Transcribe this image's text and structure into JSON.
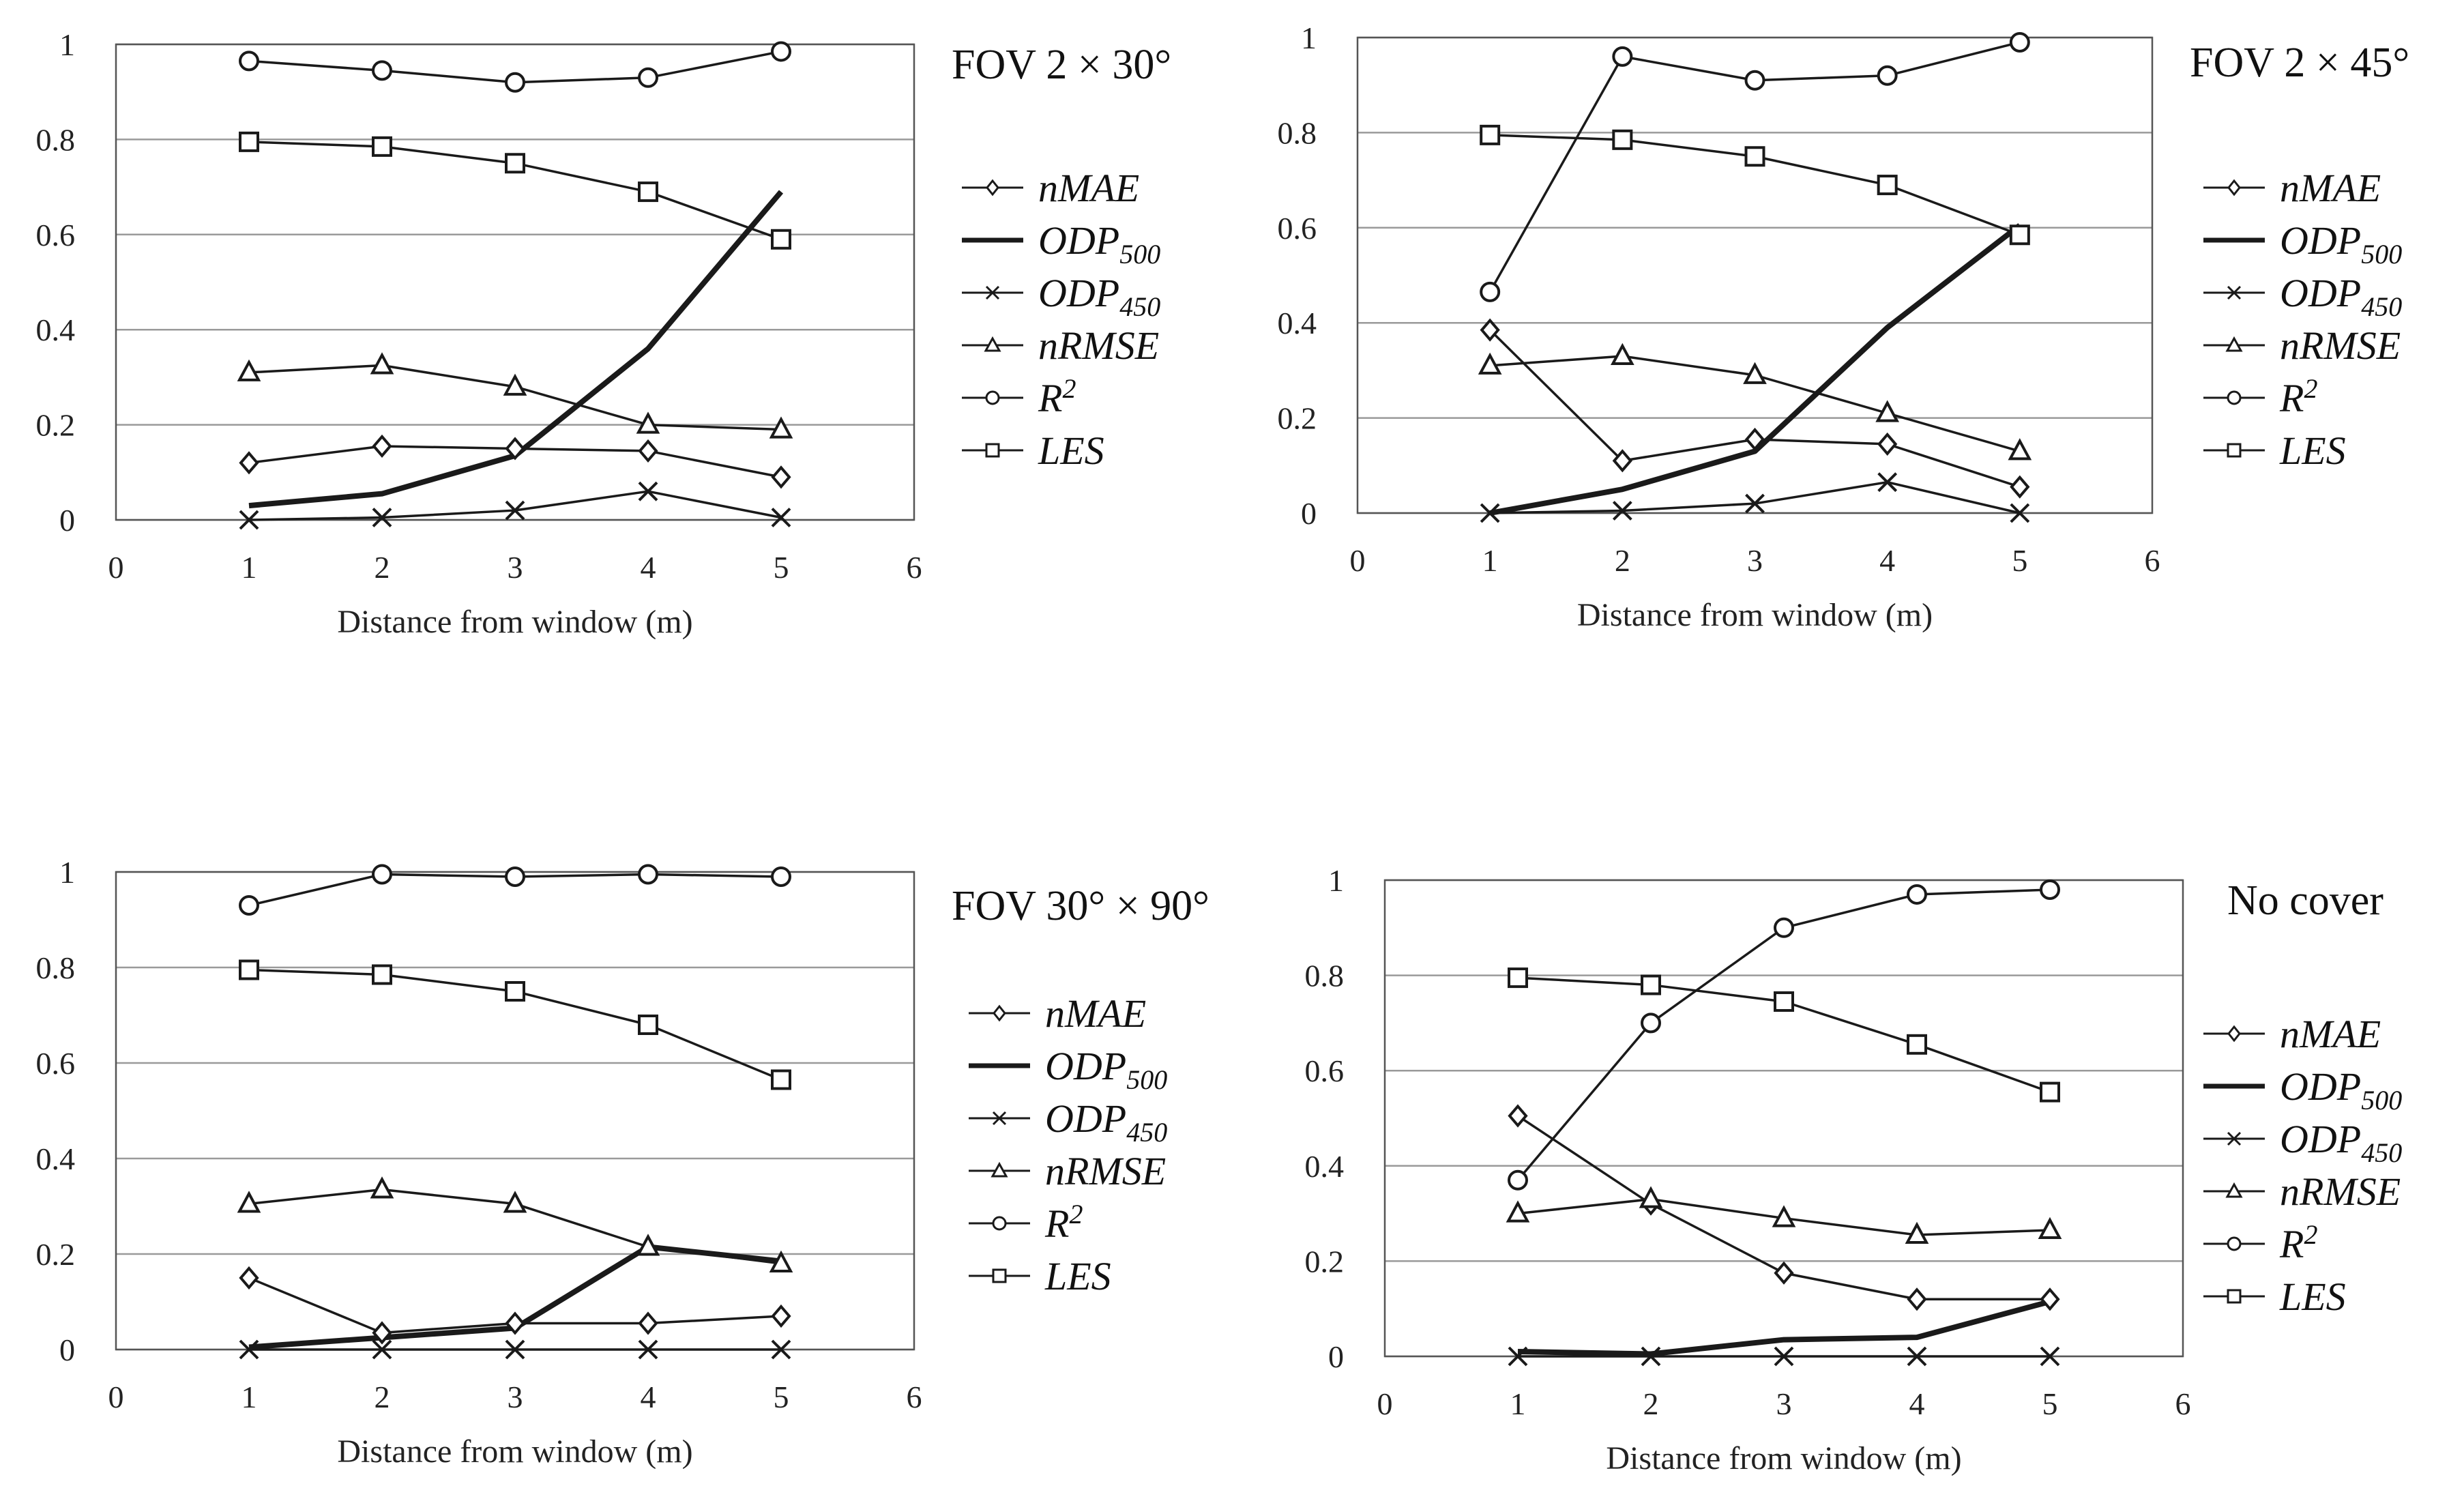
{
  "chart_data": [
    {
      "type": "line",
      "title": "FOV  2 × 30°",
      "xlabel": "Distance from window  (m)",
      "ylabel": "",
      "xlim": [
        0,
        6
      ],
      "ylim": [
        0,
        1
      ],
      "xticks": [
        "0",
        "1",
        "2",
        "3",
        "4",
        "5",
        "6"
      ],
      "yticks": [
        "0",
        "0.2",
        "0.4",
        "0.6",
        "0.8",
        "1"
      ],
      "grid": "horizontal",
      "legend_position": "right",
      "x": [
        1,
        2,
        3,
        4,
        5
      ],
      "series": [
        {
          "name": "nMAE",
          "marker": "diamond",
          "values": [
            0.12,
            0.155,
            0.15,
            0.145,
            0.09
          ]
        },
        {
          "name": "ODP500",
          "marker": "none",
          "values": [
            0.03,
            0.055,
            0.135,
            0.36,
            0.69
          ]
        },
        {
          "name": "ODP450",
          "marker": "x",
          "values": [
            0.0,
            0.005,
            0.02,
            0.06,
            0.005
          ]
        },
        {
          "name": "nRMSE",
          "marker": "triangle",
          "values": [
            0.31,
            0.325,
            0.28,
            0.2,
            0.19
          ]
        },
        {
          "name": "R2",
          "marker": "circle",
          "values": [
            0.965,
            0.945,
            0.92,
            0.93,
            0.985
          ]
        },
        {
          "name": "LES",
          "marker": "square",
          "values": [
            0.795,
            0.785,
            0.75,
            0.69,
            0.59
          ]
        }
      ]
    },
    {
      "type": "line",
      "title": "FOV  2 × 45°",
      "xlabel": "Distance from window  (m)",
      "ylabel": "",
      "xlim": [
        0,
        6
      ],
      "ylim": [
        0,
        1
      ],
      "xticks": [
        "0",
        "1",
        "2",
        "3",
        "4",
        "5",
        "6"
      ],
      "yticks": [
        "0",
        "0.2",
        "0.4",
        "0.6",
        "0.8",
        "1"
      ],
      "grid": "horizontal",
      "legend_position": "right",
      "x": [
        1,
        2,
        3,
        4,
        5
      ],
      "series": [
        {
          "name": "nMAE",
          "marker": "diamond",
          "values": [
            0.385,
            0.11,
            0.155,
            0.145,
            0.055
          ]
        },
        {
          "name": "ODP500",
          "marker": "none",
          "values": [
            0.0,
            0.05,
            0.13,
            0.39,
            0.605
          ]
        },
        {
          "name": "ODP450",
          "marker": "x",
          "values": [
            0.0,
            0.005,
            0.02,
            0.065,
            0.0
          ]
        },
        {
          "name": "nRMSE",
          "marker": "triangle",
          "values": [
            0.31,
            0.33,
            0.29,
            0.21,
            0.13
          ]
        },
        {
          "name": "R2",
          "marker": "circle",
          "values": [
            0.465,
            0.96,
            0.91,
            0.92,
            0.99
          ]
        },
        {
          "name": "LES",
          "marker": "square",
          "values": [
            0.795,
            0.785,
            0.75,
            0.69,
            0.585
          ]
        }
      ]
    },
    {
      "type": "line",
      "title": "FOV  30° × 90°",
      "xlabel": "Distance from window  (m)",
      "ylabel": "",
      "xlim": [
        0,
        6
      ],
      "ylim": [
        0,
        1
      ],
      "xticks": [
        "0",
        "1",
        "2",
        "3",
        "4",
        "5",
        "6"
      ],
      "yticks": [
        "0",
        "0.2",
        "0.4",
        "0.6",
        "0.8",
        "1"
      ],
      "grid": "horizontal",
      "legend_position": "right",
      "x": [
        1,
        2,
        3,
        4,
        5
      ],
      "series": [
        {
          "name": "nMAE",
          "marker": "diamond",
          "values": [
            0.15,
            0.035,
            0.055,
            0.055,
            0.07
          ]
        },
        {
          "name": "ODP500",
          "marker": "none",
          "values": [
            0.005,
            0.025,
            0.045,
            0.215,
            0.185
          ]
        },
        {
          "name": "ODP450",
          "marker": "x",
          "values": [
            0.0,
            0.0,
            0.0,
            0.0,
            0.0
          ]
        },
        {
          "name": "nRMSE",
          "marker": "triangle",
          "values": [
            0.305,
            0.335,
            0.305,
            0.215,
            0.18
          ]
        },
        {
          "name": "R2",
          "marker": "circle",
          "values": [
            0.93,
            0.995,
            0.99,
            0.995,
            0.99
          ]
        },
        {
          "name": "LES",
          "marker": "square",
          "values": [
            0.795,
            0.785,
            0.75,
            0.68,
            0.565
          ]
        }
      ]
    },
    {
      "type": "line",
      "title": "No cover",
      "xlabel": "Distance from window  (m)",
      "ylabel": "",
      "xlim": [
        0,
        6
      ],
      "ylim": [
        0,
        1
      ],
      "xticks": [
        "0",
        "1",
        "2",
        "3",
        "4",
        "5",
        "6"
      ],
      "yticks": [
        "0",
        "0.2",
        "0.4",
        "0.6",
        "0.8",
        "1"
      ],
      "grid": "horizontal",
      "legend_position": "right",
      "x": [
        1,
        2,
        3,
        4,
        5
      ],
      "series": [
        {
          "name": "nMAE",
          "marker": "diamond",
          "values": [
            0.505,
            0.32,
            0.175,
            0.12,
            0.12
          ]
        },
        {
          "name": "ODP500",
          "marker": "none",
          "values": [
            0.01,
            0.005,
            0.035,
            0.04,
            0.115
          ]
        },
        {
          "name": "ODP450",
          "marker": "x",
          "values": [
            0.0,
            0.0,
            0.0,
            0.0,
            0.0
          ]
        },
        {
          "name": "nRMSE",
          "marker": "triangle",
          "values": [
            0.3,
            0.33,
            0.29,
            0.255,
            0.265
          ]
        },
        {
          "name": "R2",
          "marker": "circle",
          "values": [
            0.37,
            0.7,
            0.9,
            0.97,
            0.98
          ]
        },
        {
          "name": "LES",
          "marker": "square",
          "values": [
            0.795,
            0.78,
            0.745,
            0.655,
            0.555
          ]
        }
      ]
    }
  ],
  "legend": {
    "items": [
      {
        "key": "nMAE",
        "base": "nMAE",
        "sub": "",
        "sup": ""
      },
      {
        "key": "ODP500",
        "base": "ODP",
        "sub": "500",
        "sup": ""
      },
      {
        "key": "ODP450",
        "base": "ODP",
        "sub": "450",
        "sup": ""
      },
      {
        "key": "nRMSE",
        "base": "nRMSE",
        "sub": "",
        "sup": ""
      },
      {
        "key": "R2",
        "base": "R",
        "sub": "",
        "sup": "2"
      },
      {
        "key": "LES",
        "base": "LES",
        "sub": "",
        "sup": ""
      }
    ]
  },
  "colors": {
    "line": "#1a1a1a",
    "grid": "#9a9a9a",
    "frame": "#555555",
    "background": "#ffffff"
  }
}
